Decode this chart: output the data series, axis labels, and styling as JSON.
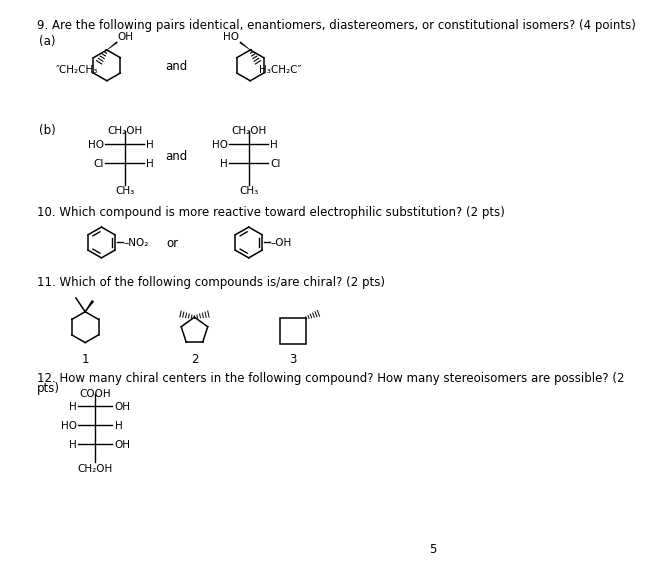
{
  "bg_color": "#ffffff",
  "text_color": "#000000",
  "fs": 8.5,
  "fs_sm": 7.5,
  "title": "9. Are the following pairs identical, enantiomers, diastereomers, or constitutional isomers? (4 points)",
  "q10": "10. Which compound is more reactive toward electrophilic substitution? (2 pts)",
  "q11": "11. Which of the following compounds is/are chiral? (2 pts)",
  "q12_line1": "12. How many chiral centers in the following compound? How many stereoisomers are possible? (2",
  "q12_line2": "pts)",
  "page_num": "5"
}
